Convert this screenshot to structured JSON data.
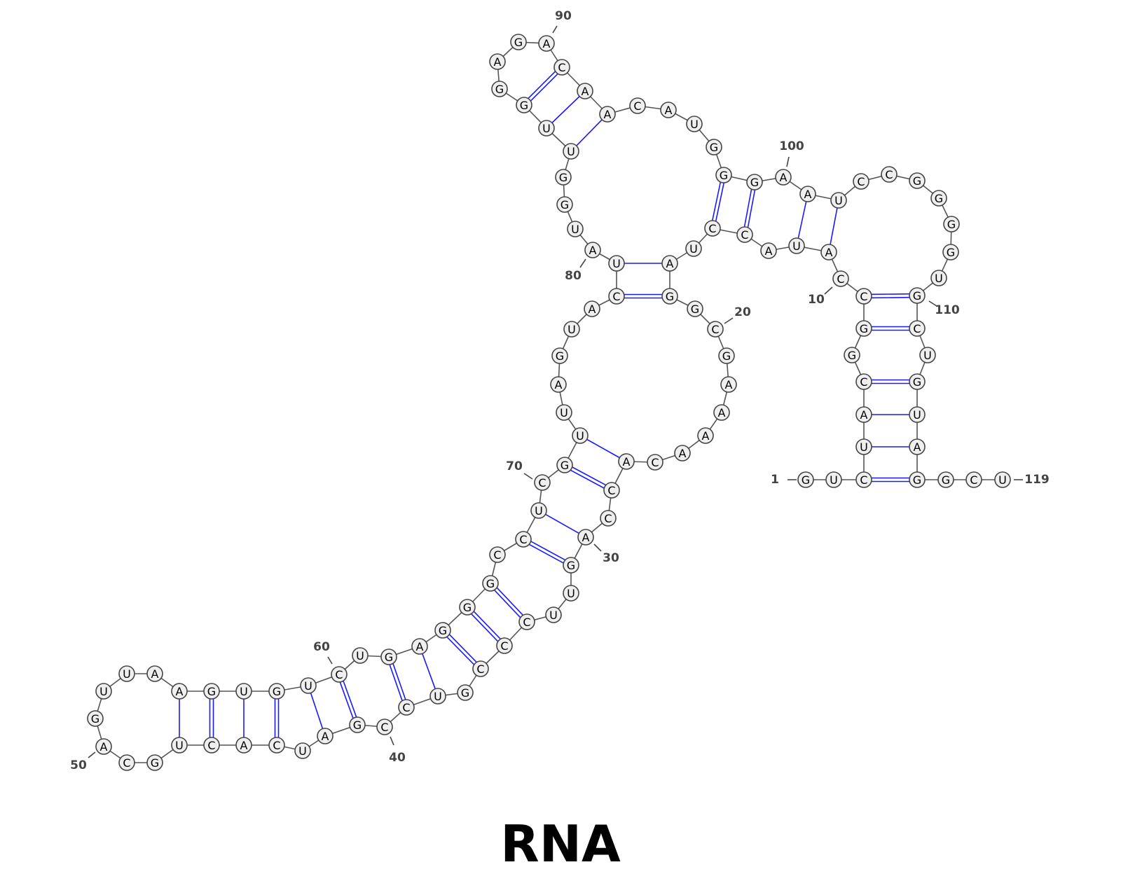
{
  "title": "RNA",
  "sequence": "GUCUAGCGACCGUGGAUUACGCGAAAACAGCCGUUCCCGUGCCAUCACUGCAGUUAGUGCAGGUCAGUGCAGCCAGCUGUAGUCAUUGGAAAGUUCAGCAGUUUCAGAGACAUGCCGGGGUGGUACGGCU",
  "nucleotides": [],
  "pairs": [],
  "numbering": [],
  "colors": {
    "pair_line": "#1a1aff",
    "backbone": "#555555",
    "nucleotide_fill": "#efefef",
    "nucleotide_stroke": "#444444",
    "label": "#444444"
  }
}
